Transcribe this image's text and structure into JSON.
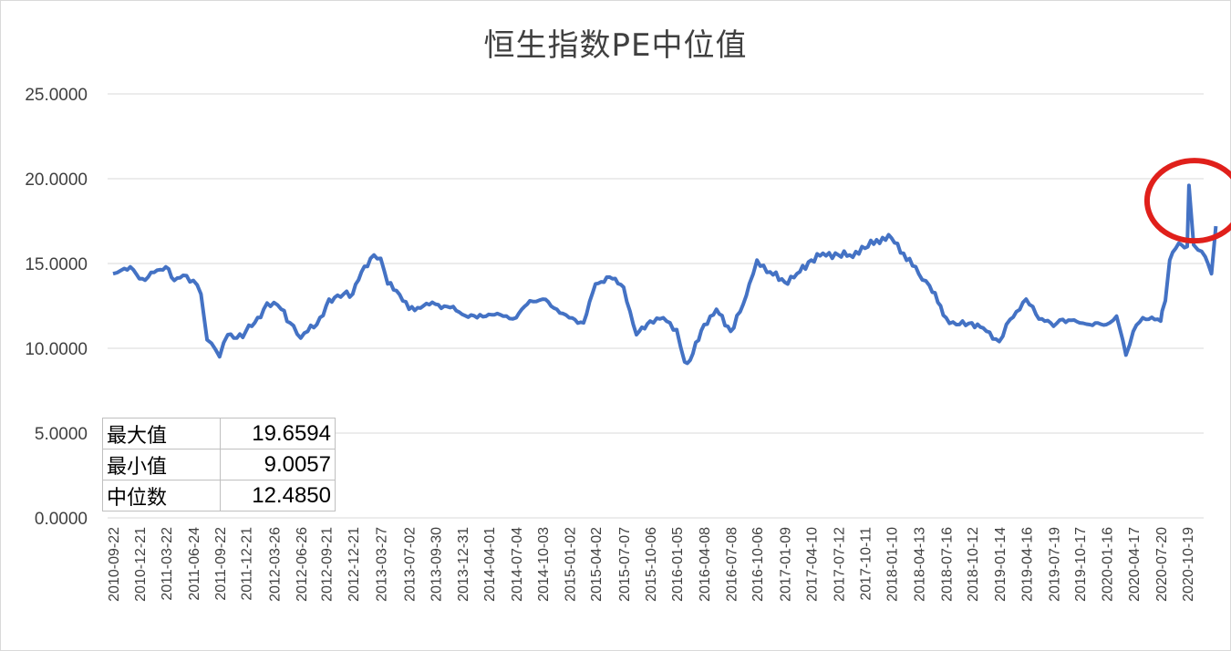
{
  "chart_data": {
    "type": "line",
    "title": "恒生指数PE中位值",
    "xlabel": "",
    "ylabel": "",
    "ylim": [
      0,
      25
    ],
    "yticks": [
      "0.0000",
      "5.0000",
      "10.0000",
      "15.0000",
      "20.0000",
      "25.0000"
    ],
    "grid": true,
    "x_tick_labels": [
      "2010-09-22",
      "2010-12-21",
      "2011-03-22",
      "2011-06-24",
      "2011-09-22",
      "2011-12-21",
      "2012-03-26",
      "2012-06-26",
      "2012-09-21",
      "2012-12-21",
      "2013-03-27",
      "2013-07-02",
      "2013-09-30",
      "2013-12-31",
      "2014-04-01",
      "2014-07-04",
      "2014-10-03",
      "2015-01-02",
      "2015-04-02",
      "2015-07-07",
      "2015-10-06",
      "2016-01-05",
      "2016-04-08",
      "2016-07-08",
      "2016-10-06",
      "2017-01-09",
      "2017-04-10",
      "2017-07-12",
      "2017-10-11",
      "2018-01-10",
      "2018-04-13",
      "2018-07-16",
      "2018-10-12",
      "2019-01-14",
      "2019-04-16",
      "2019-07-19",
      "2019-10-17",
      "2020-01-16",
      "2020-04-17",
      "2020-07-20",
      "2020-10-19"
    ],
    "series": [
      {
        "color": "#4472c4",
        "x": [
          "2010-09-22",
          "2010-10-20",
          "2010-11-20",
          "2010-12-21",
          "2011-01-20",
          "2011-02-20",
          "2011-03-22",
          "2011-04-20",
          "2011-05-20",
          "2011-06-24",
          "2011-07-20",
          "2011-08-10",
          "2011-08-25",
          "2011-09-22",
          "2011-10-20",
          "2011-11-20",
          "2011-12-21",
          "2012-01-20",
          "2012-02-20",
          "2012-03-26",
          "2012-04-20",
          "2012-05-20",
          "2012-06-26",
          "2012-07-20",
          "2012-08-20",
          "2012-09-21",
          "2012-10-20",
          "2012-11-20",
          "2012-12-21",
          "2013-01-20",
          "2013-02-20",
          "2013-03-27",
          "2013-04-20",
          "2013-05-20",
          "2013-07-02",
          "2013-08-20",
          "2013-09-30",
          "2013-11-20",
          "2013-12-31",
          "2014-02-20",
          "2014-04-01",
          "2014-05-20",
          "2014-07-04",
          "2014-08-20",
          "2014-10-03",
          "2014-11-20",
          "2015-01-02",
          "2015-02-20",
          "2015-04-02",
          "2015-05-20",
          "2015-07-07",
          "2015-08-20",
          "2015-10-06",
          "2015-11-20",
          "2016-01-05",
          "2016-02-01",
          "2016-02-20",
          "2016-04-08",
          "2016-05-20",
          "2016-07-08",
          "2016-08-20",
          "2016-09-10",
          "2016-10-06",
          "2016-11-20",
          "2017-01-09",
          "2017-02-20",
          "2017-04-10",
          "2017-05-20",
          "2017-07-12",
          "2017-08-20",
          "2017-10-11",
          "2017-11-20",
          "2018-01-10",
          "2018-02-20",
          "2018-04-13",
          "2018-05-20",
          "2018-07-16",
          "2018-08-20",
          "2018-10-12",
          "2018-11-20",
          "2019-01-14",
          "2019-02-20",
          "2019-04-16",
          "2019-05-20",
          "2019-07-19",
          "2019-08-20",
          "2019-10-17",
          "2019-11-20",
          "2020-01-16",
          "2020-02-20",
          "2020-03-23",
          "2020-04-17",
          "2020-05-20",
          "2020-07-20",
          "2020-07-25",
          "2020-08-05",
          "2020-08-20",
          "2020-09-20",
          "2020-10-19",
          "2020-10-25",
          "2020-11-10",
          "2020-11-25",
          "2020-12-20",
          "2021-01-10",
          "2021-01-25"
        ],
        "values": [
          14.4,
          14.6,
          14.8,
          14.1,
          14.2,
          14.6,
          14.8,
          14.0,
          14.3,
          14.0,
          13.2,
          10.5,
          10.3,
          9.5,
          10.8,
          10.6,
          11.0,
          11.5,
          12.3,
          12.7,
          12.3,
          11.5,
          10.6,
          11.0,
          11.4,
          12.5,
          13.0,
          13.2,
          13.2,
          14.5,
          15.3,
          15.3,
          13.8,
          13.4,
          12.3,
          12.5,
          12.6,
          12.4,
          12.0,
          11.8,
          12.0,
          11.9,
          11.8,
          12.8,
          12.9,
          12.3,
          11.8,
          11.5,
          13.8,
          14.2,
          13.6,
          10.8,
          11.6,
          11.8,
          11.1,
          9.2,
          9.3,
          11.4,
          12.3,
          11.0,
          12.6,
          13.8,
          15.2,
          14.5,
          13.9,
          14.4,
          15.2,
          15.6,
          15.5,
          15.5,
          15.9,
          16.4,
          16.5,
          15.6,
          14.4,
          13.7,
          11.8,
          11.4,
          11.5,
          11.2,
          10.4,
          11.7,
          12.9,
          12.0,
          11.3,
          11.7,
          11.5,
          11.4,
          11.4,
          11.9,
          9.6,
          11.0,
          11.8,
          11.6,
          12.2,
          12.8,
          15.2,
          16.2,
          16.0,
          19.6,
          16.1,
          15.8,
          15.4,
          14.4,
          17.2
        ],
        "max": 19.6594,
        "min": 9.0057,
        "median": 12.485
      }
    ]
  },
  "stats_table": [
    {
      "label": "最大值",
      "value": "19.6594"
    },
    {
      "label": "最小值",
      "value": "9.0057"
    },
    {
      "label": "中位数",
      "value": "12.4850"
    }
  ],
  "annotation": {
    "color": "#e0201b"
  }
}
